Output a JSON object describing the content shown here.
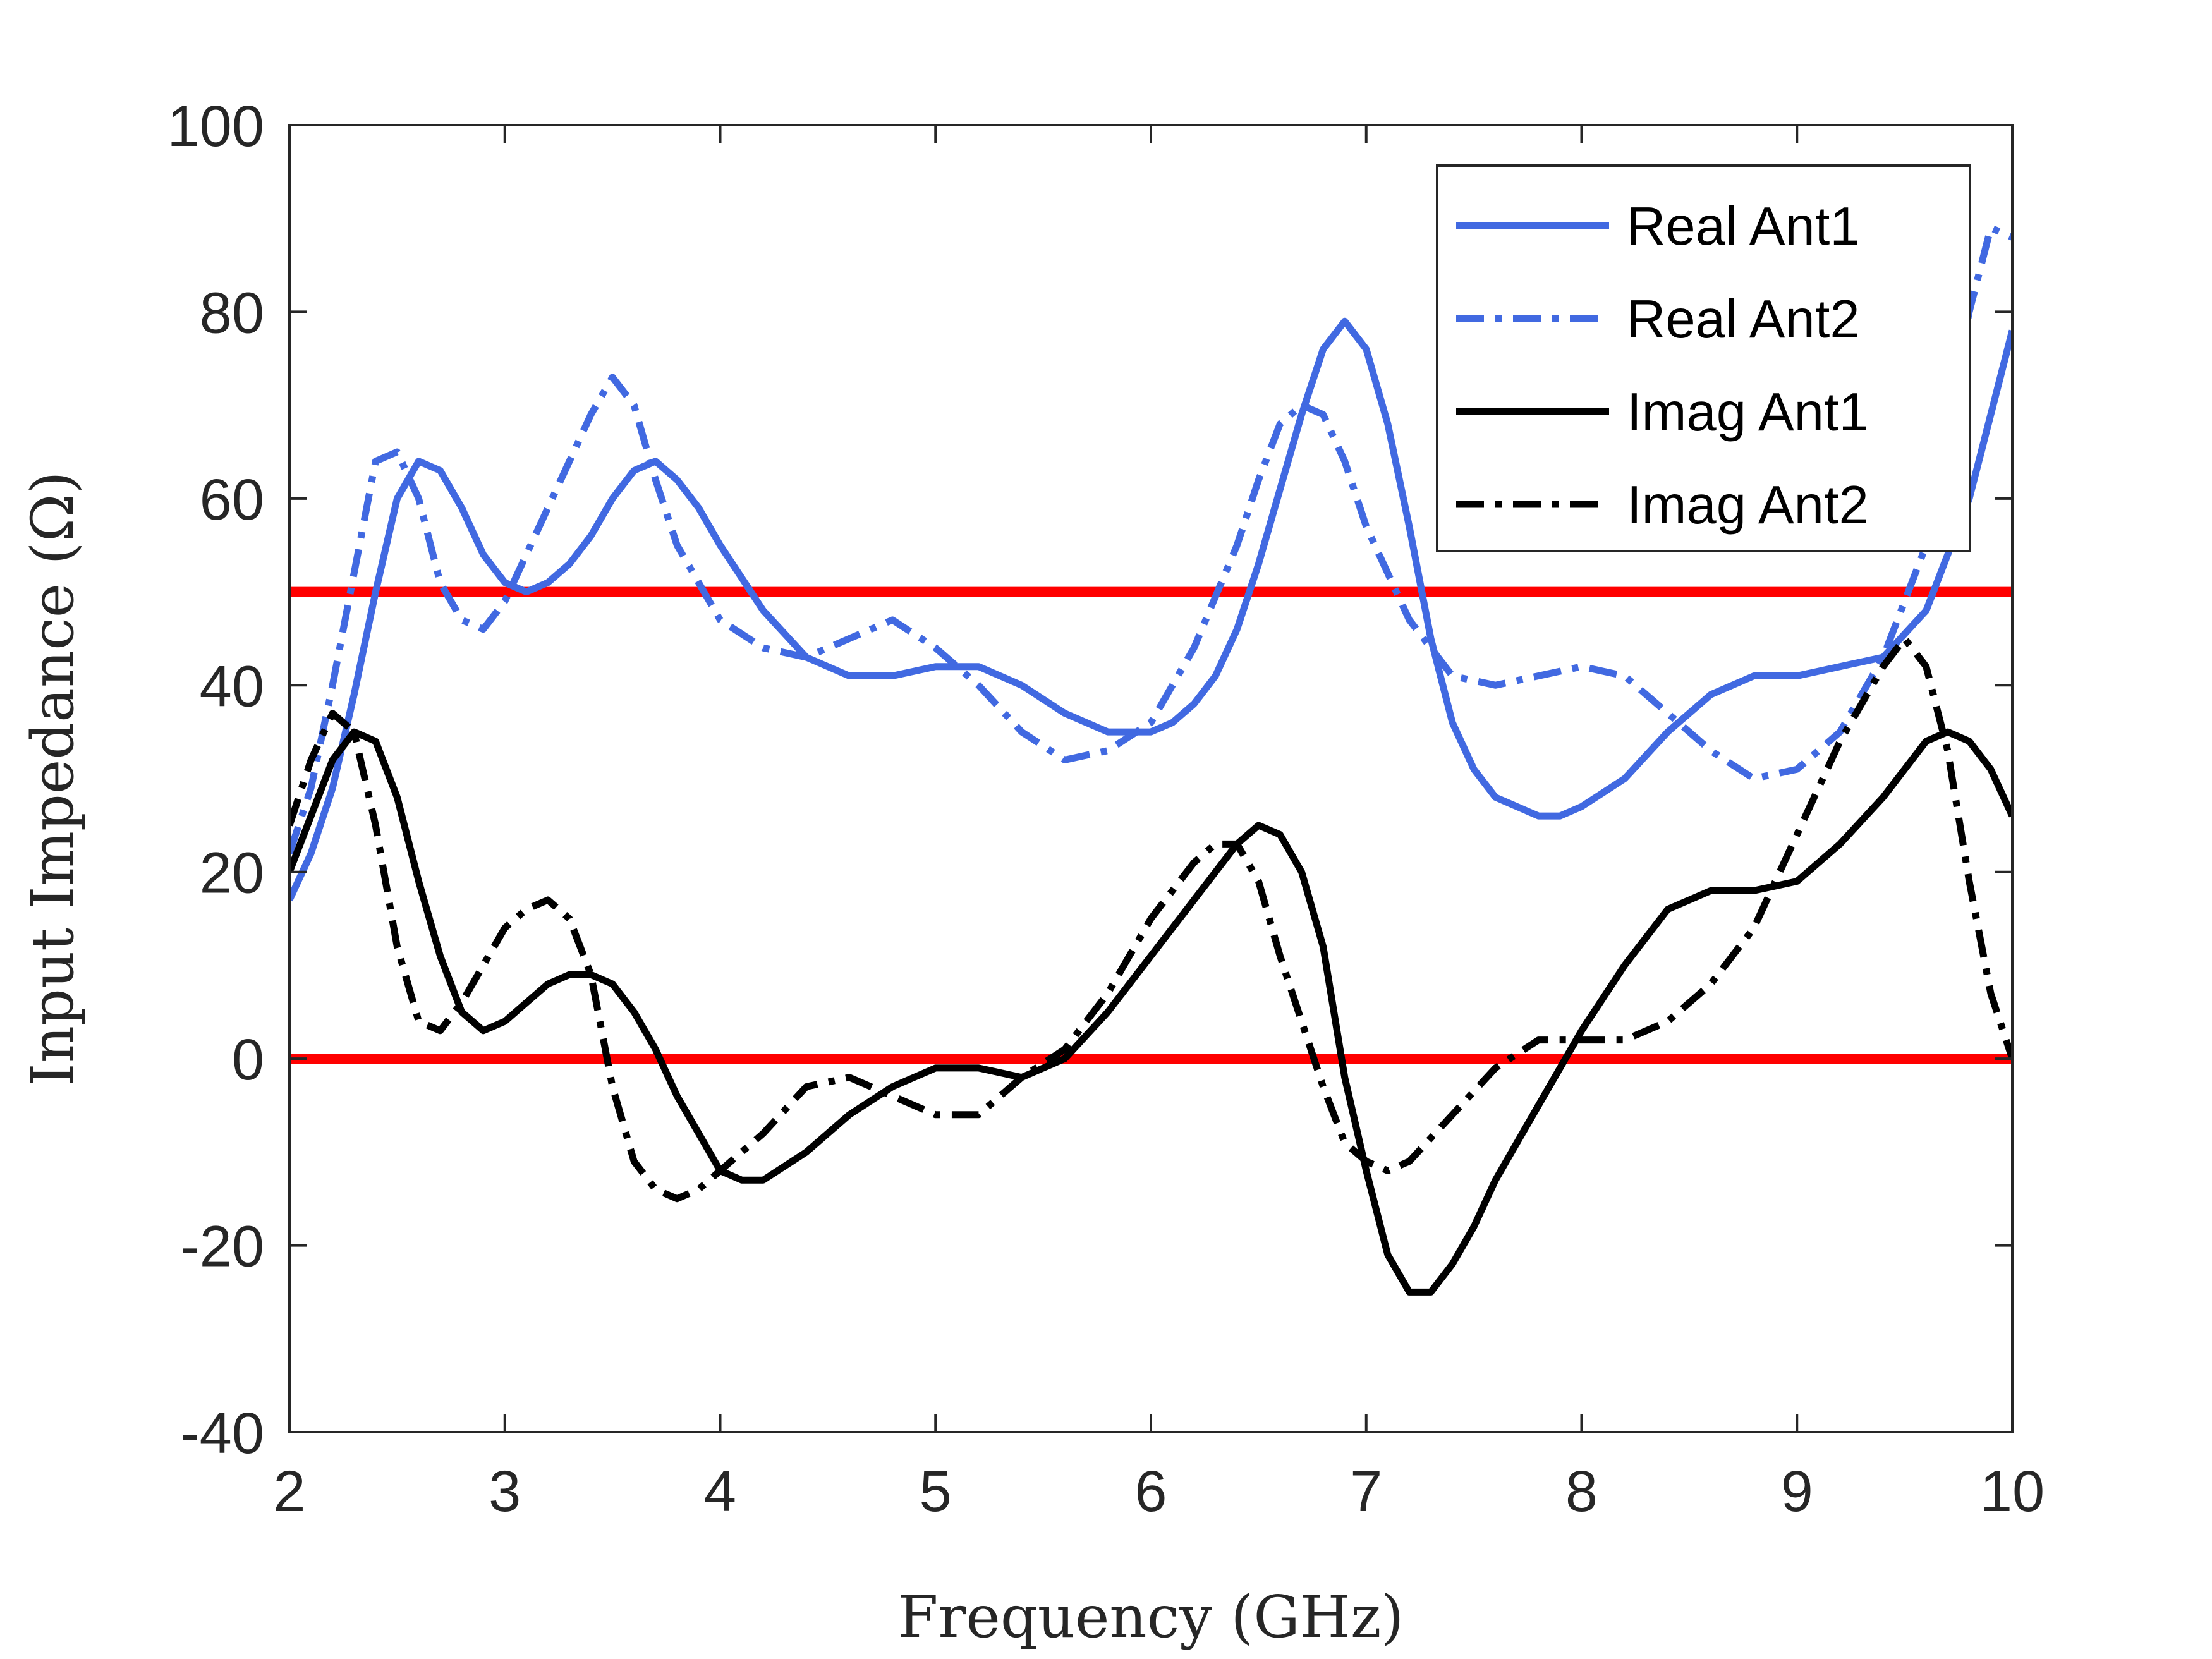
{
  "chart_data": {
    "type": "line",
    "title": "",
    "xlabel": "Frequency (GHz)",
    "ylabel": "Input Impedance (Ω)",
    "xlim": [
      2,
      10
    ],
    "ylim": [
      -40,
      100
    ],
    "xticks": [
      2,
      3,
      4,
      5,
      6,
      7,
      8,
      9,
      10
    ],
    "yticks": [
      -40,
      -20,
      0,
      20,
      40,
      60,
      80,
      100
    ],
    "grid": false,
    "legend_position": "top-right",
    "reference_lines": [
      {
        "y": 50,
        "color": "#ff0000"
      },
      {
        "y": 0,
        "color": "#ff0000"
      }
    ],
    "series": [
      {
        "name": "Real Ant1",
        "color": "#4169e1",
        "style": "solid",
        "x": [
          2.0,
          2.1,
          2.2,
          2.3,
          2.4,
          2.5,
          2.6,
          2.7,
          2.8,
          2.9,
          3.0,
          3.1,
          3.2,
          3.3,
          3.4,
          3.5,
          3.6,
          3.7,
          3.8,
          3.9,
          4.0,
          4.2,
          4.4,
          4.6,
          4.8,
          5.0,
          5.2,
          5.4,
          5.6,
          5.8,
          6.0,
          6.1,
          6.2,
          6.3,
          6.4,
          6.5,
          6.6,
          6.7,
          6.8,
          6.9,
          7.0,
          7.1,
          7.2,
          7.3,
          7.4,
          7.5,
          7.6,
          7.7,
          7.8,
          7.9,
          8.0,
          8.2,
          8.4,
          8.6,
          8.8,
          9.0,
          9.2,
          9.4,
          9.6,
          9.8,
          10.0
        ],
        "y": [
          17,
          22,
          29,
          39,
          50,
          60,
          64,
          63,
          59,
          54,
          51,
          50,
          51,
          53,
          56,
          60,
          63,
          64,
          62,
          59,
          55,
          48,
          43,
          41,
          41,
          42,
          42,
          40,
          37,
          35,
          35,
          36,
          38,
          41,
          46,
          53,
          61,
          69,
          76,
          79,
          76,
          68,
          57,
          45,
          36,
          31,
          28,
          27,
          26,
          26,
          27,
          30,
          35,
          39,
          41,
          41,
          42,
          43,
          48,
          60,
          78
        ]
      },
      {
        "name": "Real Ant2",
        "color": "#4169e1",
        "style": "dashdot",
        "x": [
          2.0,
          2.1,
          2.2,
          2.3,
          2.4,
          2.5,
          2.6,
          2.7,
          2.8,
          2.9,
          3.0,
          3.1,
          3.2,
          3.3,
          3.4,
          3.5,
          3.6,
          3.7,
          3.8,
          3.9,
          4.0,
          4.2,
          4.4,
          4.6,
          4.8,
          5.0,
          5.2,
          5.4,
          5.6,
          5.8,
          6.0,
          6.2,
          6.4,
          6.5,
          6.6,
          6.7,
          6.8,
          6.9,
          7.0,
          7.2,
          7.4,
          7.6,
          7.8,
          8.0,
          8.2,
          8.4,
          8.6,
          8.8,
          9.0,
          9.2,
          9.4,
          9.6,
          9.7,
          9.8,
          9.9,
          10.0
        ],
        "y": [
          22,
          29,
          40,
          52,
          64,
          65,
          60,
          51,
          47,
          46,
          49,
          54,
          59,
          64,
          69,
          73,
          70,
          62,
          55,
          51,
          47,
          44,
          43,
          45,
          47,
          44,
          40,
          35,
          32,
          33,
          36,
          44,
          55,
          62,
          68,
          70,
          69,
          64,
          57,
          47,
          41,
          40,
          41,
          42,
          41,
          37,
          33,
          30,
          31,
          35,
          43,
          55,
          68,
          80,
          89,
          88
        ]
      },
      {
        "name": "Imag Ant1",
        "color": "#000000",
        "style": "solid",
        "x": [
          2.0,
          2.1,
          2.2,
          2.3,
          2.4,
          2.5,
          2.6,
          2.7,
          2.8,
          2.9,
          3.0,
          3.1,
          3.2,
          3.3,
          3.4,
          3.5,
          3.6,
          3.7,
          3.8,
          3.9,
          4.0,
          4.1,
          4.2,
          4.4,
          4.6,
          4.8,
          5.0,
          5.2,
          5.4,
          5.6,
          5.8,
          6.0,
          6.2,
          6.4,
          6.5,
          6.6,
          6.7,
          6.8,
          6.9,
          7.0,
          7.1,
          7.2,
          7.3,
          7.4,
          7.5,
          7.6,
          7.8,
          8.0,
          8.2,
          8.4,
          8.6,
          8.8,
          9.0,
          9.2,
          9.4,
          9.6,
          9.7,
          9.8,
          9.9,
          10.0
        ],
        "y": [
          20,
          26,
          32,
          35,
          34,
          28,
          19,
          11,
          5,
          3,
          4,
          6,
          8,
          9,
          9,
          8,
          5,
          1,
          -4,
          -8,
          -12,
          -13,
          -13,
          -10,
          -6,
          -3,
          -1,
          -1,
          -2,
          0,
          5,
          11,
          17,
          23,
          25,
          24,
          20,
          12,
          -2,
          -12,
          -21,
          -25,
          -25,
          -22,
          -18,
          -13,
          -5,
          3,
          10,
          16,
          18,
          18,
          19,
          23,
          28,
          34,
          35,
          34,
          31,
          26
        ]
      },
      {
        "name": "Imag Ant2",
        "color": "#000000",
        "style": "dashdot",
        "x": [
          2.0,
          2.1,
          2.2,
          2.3,
          2.4,
          2.5,
          2.6,
          2.7,
          2.8,
          2.9,
          3.0,
          3.1,
          3.2,
          3.3,
          3.4,
          3.5,
          3.6,
          3.7,
          3.8,
          3.9,
          4.0,
          4.2,
          4.4,
          4.6,
          4.8,
          5.0,
          5.2,
          5.4,
          5.6,
          5.8,
          6.0,
          6.2,
          6.3,
          6.4,
          6.5,
          6.6,
          6.7,
          6.8,
          6.9,
          7.0,
          7.1,
          7.2,
          7.4,
          7.6,
          7.8,
          8.0,
          8.2,
          8.4,
          8.6,
          8.8,
          9.0,
          9.2,
          9.4,
          9.5,
          9.6,
          9.7,
          9.8,
          9.9,
          10.0
        ],
        "y": [
          25,
          32,
          37,
          35,
          25,
          12,
          4,
          3,
          6,
          10,
          14,
          16,
          17,
          15,
          9,
          -3,
          -11,
          -14,
          -15,
          -14,
          -12,
          -8,
          -3,
          -2,
          -4,
          -6,
          -6,
          -2,
          1,
          7,
          15,
          21,
          23,
          23,
          19,
          11,
          4,
          -3,
          -9,
          -11,
          -12,
          -11,
          -6,
          -1,
          2,
          2,
          2,
          4,
          8,
          14,
          24,
          34,
          42,
          45,
          42,
          33,
          19,
          7,
          0
        ]
      }
    ]
  }
}
